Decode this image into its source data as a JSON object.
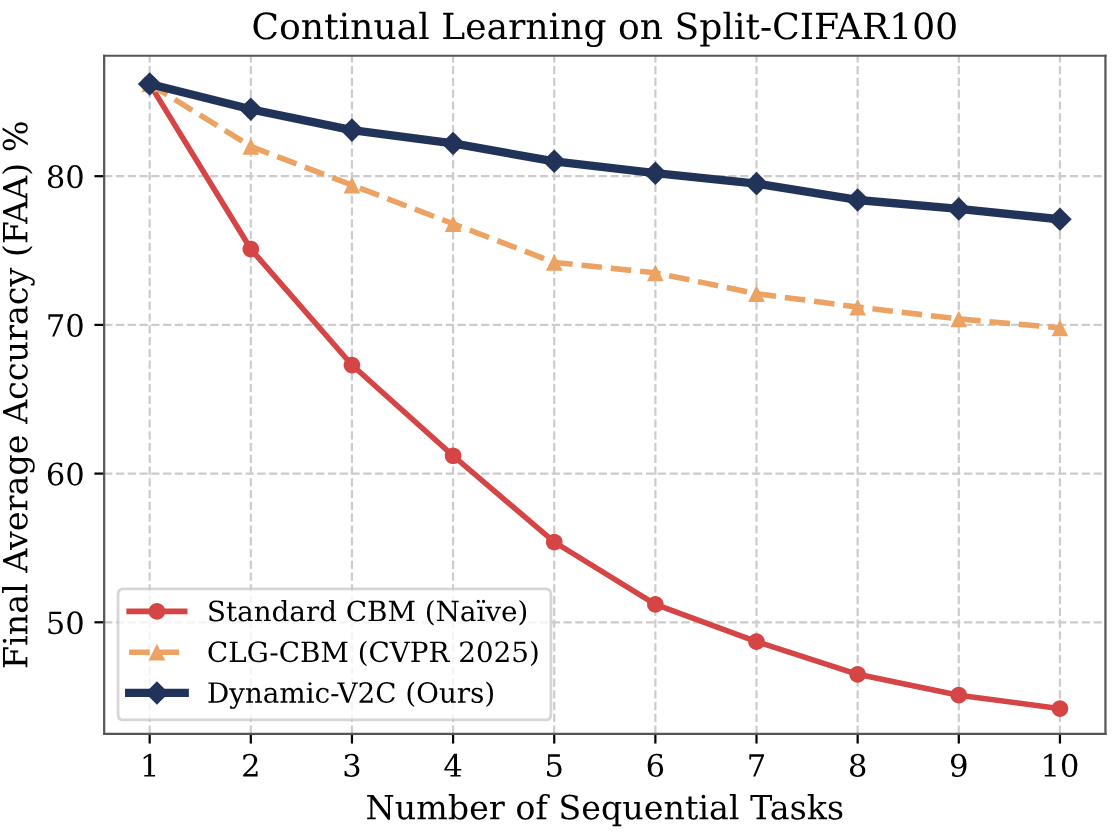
{
  "chart_data": {
    "type": "line",
    "title": "Continual Learning on Split-CIFAR100",
    "xlabel": "Number of Sequential Tasks",
    "ylabel": "Final Average Accuracy (FAA) %",
    "x": [
      1,
      2,
      3,
      4,
      5,
      6,
      7,
      8,
      9,
      10
    ],
    "series": [
      {
        "name": "Standard CBM (Naïve)",
        "color": "#d64545",
        "marker": "circle",
        "line_style": "solid",
        "values": [
          86.2,
          75.1,
          67.3,
          61.2,
          55.4,
          51.2,
          48.7,
          46.5,
          45.1,
          44.2
        ]
      },
      {
        "name": "CLG-CBM (CVPR 2025)",
        "color": "#eba263",
        "marker": "triangle",
        "line_style": "dashed",
        "values": [
          86.2,
          82.0,
          79.4,
          76.8,
          74.2,
          73.5,
          72.1,
          71.2,
          70.4,
          69.8
        ]
      },
      {
        "name": "Dynamic-V2C (Ours)",
        "color": "#22335a",
        "marker": "diamond",
        "line_style": "solid",
        "values": [
          86.2,
          84.5,
          83.1,
          82.2,
          81.0,
          80.2,
          79.5,
          78.4,
          77.8,
          77.1
        ]
      }
    ],
    "xlim": [
      0.55,
      10.45
    ],
    "xticks": [
      1,
      2,
      3,
      4,
      5,
      6,
      7,
      8,
      9,
      10
    ],
    "ylim": [
      42.5,
      88.1
    ],
    "yticks": [
      50,
      60,
      70,
      80
    ],
    "grid": true,
    "legend": "bottom left"
  }
}
